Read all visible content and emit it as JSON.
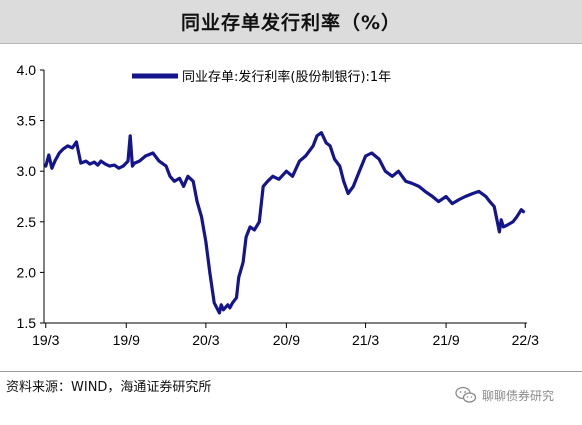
{
  "title": "同业存单发行利率（%）",
  "source": "资料来源：WIND，海通证券研究所",
  "watermark": {
    "text": "聊聊债券研究",
    "icon": "wechat-icon"
  },
  "colors": {
    "series": "#14148c",
    "axis": "#000000",
    "title_bg": "#dcdcdc"
  },
  "chart_data": {
    "type": "line",
    "title": "",
    "xlabel": "",
    "ylabel": "",
    "ylim": [
      1.5,
      4.0
    ],
    "yticks": [
      "4.0",
      "3.5",
      "3.0",
      "2.5",
      "2.0",
      "1.5"
    ],
    "xticks": [
      "19/3",
      "19/9",
      "20/3",
      "20/9",
      "21/3",
      "21/9",
      "22/3"
    ],
    "grid": false,
    "legend_position": "top",
    "series": [
      {
        "name": "同业存单:发行利率(股份制银行):1年",
        "x": [
          "2019-03-01",
          "2019-03-08",
          "2019-03-15",
          "2019-03-22",
          "2019-04-01",
          "2019-04-10",
          "2019-04-20",
          "2019-05-01",
          "2019-05-10",
          "2019-05-20",
          "2019-06-01",
          "2019-06-10",
          "2019-06-20",
          "2019-06-28",
          "2019-07-05",
          "2019-07-15",
          "2019-07-25",
          "2019-08-05",
          "2019-08-15",
          "2019-08-25",
          "2019-09-05",
          "2019-09-10",
          "2019-09-15",
          "2019-09-20",
          "2019-10-01",
          "2019-10-15",
          "2019-11-01",
          "2019-11-15",
          "2019-12-01",
          "2019-12-10",
          "2019-12-20",
          "2020-01-01",
          "2020-01-10",
          "2020-01-20",
          "2020-02-01",
          "2020-02-10",
          "2020-02-20",
          "2020-03-01",
          "2020-03-10",
          "2020-03-20",
          "2020-04-01",
          "2020-04-05",
          "2020-04-10",
          "2020-04-20",
          "2020-04-25",
          "2020-05-01",
          "2020-05-10",
          "2020-05-15",
          "2020-05-25",
          "2020-06-01",
          "2020-06-10",
          "2020-06-20",
          "2020-07-01",
          "2020-07-10",
          "2020-07-20",
          "2020-08-01",
          "2020-08-15",
          "2020-09-01",
          "2020-09-15",
          "2020-10-01",
          "2020-10-15",
          "2020-11-01",
          "2020-11-10",
          "2020-11-20",
          "2020-12-01",
          "2020-12-10",
          "2020-12-20",
          "2021-01-01",
          "2021-01-10",
          "2021-01-20",
          "2021-02-01",
          "2021-02-15",
          "2021-03-01",
          "2021-03-15",
          "2021-04-01",
          "2021-04-15",
          "2021-05-01",
          "2021-05-15",
          "2021-06-01",
          "2021-06-15",
          "2021-07-01",
          "2021-07-15",
          "2021-08-01",
          "2021-08-15",
          "2021-09-01",
          "2021-09-15",
          "2021-10-01",
          "2021-10-15",
          "2021-11-01",
          "2021-11-15",
          "2021-12-01",
          "2021-12-10",
          "2021-12-20",
          "2022-01-01",
          "2022-01-05",
          "2022-01-10",
          "2022-01-20",
          "2022-02-01",
          "2022-02-10",
          "2022-02-20",
          "2022-02-25"
        ],
        "values": [
          3.05,
          3.16,
          3.03,
          3.1,
          3.18,
          3.22,
          3.25,
          3.23,
          3.29,
          3.08,
          3.1,
          3.07,
          3.09,
          3.06,
          3.1,
          3.07,
          3.05,
          3.06,
          3.03,
          3.05,
          3.1,
          3.35,
          3.05,
          3.08,
          3.1,
          3.15,
          3.18,
          3.1,
          3.05,
          2.95,
          2.9,
          2.93,
          2.85,
          2.95,
          2.9,
          2.7,
          2.55,
          2.3,
          2.0,
          1.7,
          1.6,
          1.68,
          1.63,
          1.68,
          1.65,
          1.7,
          1.75,
          1.95,
          2.1,
          2.35,
          2.45,
          2.42,
          2.5,
          2.85,
          2.9,
          2.95,
          2.92,
          3.0,
          2.95,
          3.1,
          3.15,
          3.25,
          3.35,
          3.38,
          3.28,
          3.25,
          3.12,
          3.05,
          2.9,
          2.78,
          2.85,
          3.0,
          3.15,
          3.18,
          3.12,
          3.0,
          2.95,
          3.0,
          2.9,
          2.88,
          2.85,
          2.8,
          2.75,
          2.7,
          2.75,
          2.68,
          2.72,
          2.75,
          2.78,
          2.8,
          2.75,
          2.7,
          2.65,
          2.4,
          2.52,
          2.45,
          2.47,
          2.5,
          2.55,
          2.62,
          2.6
        ]
      }
    ]
  }
}
